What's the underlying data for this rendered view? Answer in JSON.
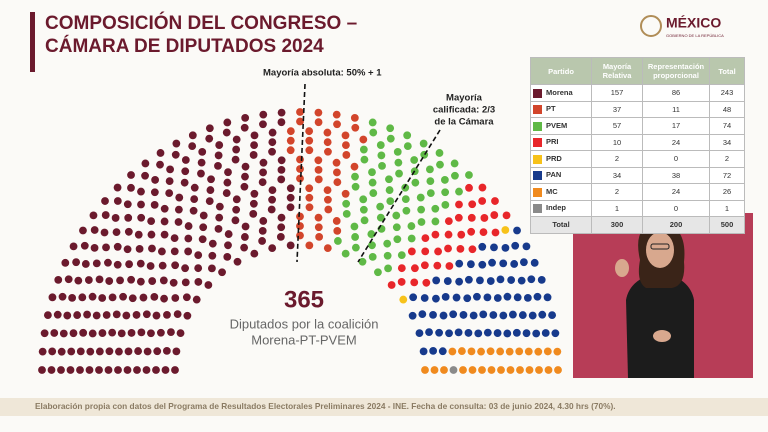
{
  "header": {
    "title": [
      "COMPOSICIÓN DEL CONGRESO –",
      "CÁMARA DE DIPUTADOS 2024"
    ]
  },
  "logo": {
    "name": "MÉXICO",
    "subtitle": "GOBIERNO DE LA REPÚBLICA"
  },
  "chart_data": {
    "type": "parliament",
    "annotations": {
      "absolute": "Mayoría absoluta: 50% + 1",
      "qualified": [
        "Mayoría",
        "calificada: 2/3",
        "de la Cámara"
      ],
      "coalition_seats": "365",
      "coalition_label": [
        "Diputados por la coalición",
        "Morena-PT-PVEM"
      ]
    },
    "category_label": "Partido",
    "categories": [
      "Mayoría Relativa",
      "Representación proporcional",
      "Total"
    ],
    "series": [
      {
        "name": "Morena",
        "color": "#6b1a2d",
        "values": [
          157,
          86,
          243
        ]
      },
      {
        "name": "PT",
        "color": "#d2452b",
        "values": [
          37,
          11,
          48
        ]
      },
      {
        "name": "PVEM",
        "color": "#5fb946",
        "values": [
          57,
          17,
          74
        ]
      },
      {
        "name": "PRI",
        "color": "#e8262a",
        "values": [
          10,
          24,
          34
        ]
      },
      {
        "name": "PRD",
        "color": "#f7c21a",
        "values": [
          2,
          0,
          2
        ]
      },
      {
        "name": "PAN",
        "color": "#173a8c",
        "values": [
          34,
          38,
          72
        ]
      },
      {
        "name": "MC",
        "color": "#f08a1e",
        "values": [
          2,
          24,
          26
        ]
      },
      {
        "name": "Indep",
        "color": "#8a8a8a",
        "values": [
          1,
          0,
          1
        ]
      }
    ],
    "total_label": "Total",
    "totals": [
      300,
      200,
      500
    ]
  },
  "footer": "Elaboración propia con datos del Programa de Resultados Electorales Preliminares 2024 - INE. Fecha de consulta: 03 de junio 2024, 4.30 hrs (70%)."
}
